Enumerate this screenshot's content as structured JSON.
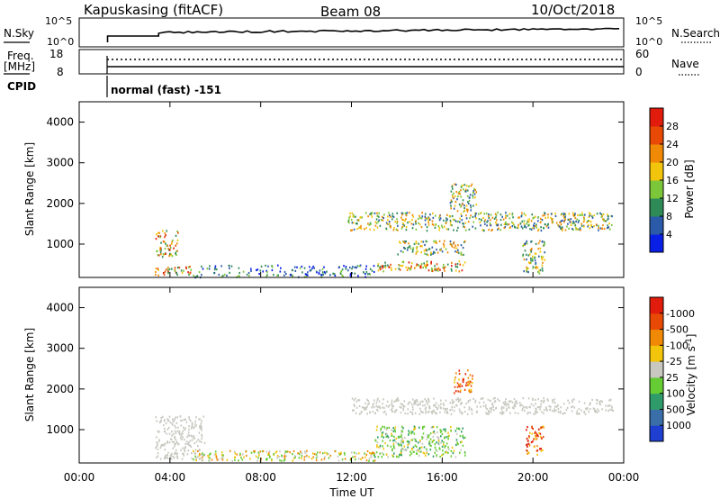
{
  "header": {
    "station": "Kapuskasing (fitACF)",
    "beam": "Beam 08",
    "date": "10/Oct/2018"
  },
  "strip_panels": {
    "noise": {
      "left_label": "N.Sky",
      "right_label": "N.Search",
      "left_ticks": [
        "10^5",
        "10^0"
      ],
      "right_ticks": [
        "10^5",
        "10^0"
      ]
    },
    "freq": {
      "left_label_line1": "Freq.",
      "left_label_line2": "[MHz]",
      "right_label": "Nave",
      "left_ticks": [
        "18",
        "8"
      ],
      "right_ticks": [
        "60",
        "0"
      ]
    },
    "cpid": {
      "label": "CPID",
      "mode_text": "normal (fast) -151"
    }
  },
  "chart_data": [
    {
      "type": "heatmap",
      "panel": "power",
      "title": "",
      "ylabel": "Slant Range [km]",
      "xlabel": "",
      "xlim": [
        "00:00",
        "24:00"
      ],
      "ylim": [
        180,
        4500
      ],
      "yticks": [
        1000,
        2000,
        3000,
        4000
      ],
      "colorbar": {
        "label": "Power [dB]",
        "ticks": [
          "4",
          "8",
          "12",
          "16",
          "20",
          "24",
          "28"
        ],
        "colors": [
          "#0a1fe6",
          "#2a5aa8",
          "#2e8b57",
          "#7cc63a",
          "#f2c40c",
          "#f08a06",
          "#e84a06",
          "#e11c0c"
        ]
      },
      "echo_regions": [
        {
          "t_start": "03:20",
          "t_end": "05:00",
          "range_km": [
            250,
            480
          ],
          "level": "high"
        },
        {
          "t_start": "03:20",
          "t_end": "04:20",
          "range_km": [
            700,
            1350
          ],
          "level": "high"
        },
        {
          "t_start": "05:00",
          "t_end": "13:00",
          "range_km": [
            200,
            500
          ],
          "level": "low"
        },
        {
          "t_start": "11:50",
          "t_end": "23:30",
          "range_km": [
            1350,
            1800
          ],
          "level": "medium"
        },
        {
          "t_start": "13:00",
          "t_end": "17:00",
          "range_km": [
            350,
            600
          ],
          "level": "high"
        },
        {
          "t_start": "14:00",
          "t_end": "17:00",
          "range_km": [
            750,
            1100
          ],
          "level": "medium"
        },
        {
          "t_start": "16:20",
          "t_end": "17:30",
          "range_km": [
            1800,
            2500
          ],
          "level": "medium"
        },
        {
          "t_start": "19:30",
          "t_end": "20:30",
          "range_km": [
            300,
            1100
          ],
          "level": "medium"
        }
      ]
    },
    {
      "type": "heatmap",
      "panel": "velocity",
      "title": "",
      "ylabel": "Slant Range [km]",
      "xlabel": "Time UT",
      "xlim": [
        "00:00",
        "24:00"
      ],
      "ylim": [
        180,
        4500
      ],
      "yticks": [
        1000,
        2000,
        3000,
        4000
      ],
      "xticks": [
        "00:00",
        "04:00",
        "08:00",
        "12:00",
        "16:00",
        "20:00",
        "00:00"
      ],
      "colorbar": {
        "label": "Velocity [m s^-1]",
        "ticks": [
          "1000",
          "500",
          "100",
          "25",
          "-25",
          "-100",
          "-500",
          "-1000"
        ],
        "colors": [
          "#1f3fd0",
          "#3a6ea8",
          "#2f9a6a",
          "#66cc33",
          "#c8c8c0",
          "#f2c40c",
          "#f08a06",
          "#e84a06",
          "#e11c0c"
        ]
      },
      "echo_regions": [
        {
          "t_start": "03:20",
          "t_end": "05:30",
          "range_km": [
            300,
            1350
          ],
          "level": "ground-scatter"
        },
        {
          "t_start": "05:00",
          "t_end": "13:00",
          "range_km": [
            250,
            500
          ],
          "level": "mixed"
        },
        {
          "t_start": "12:00",
          "t_end": "23:30",
          "range_km": [
            1400,
            1800
          ],
          "level": "ground-scatter"
        },
        {
          "t_start": "13:00",
          "t_end": "17:00",
          "range_km": [
            350,
            1100
          ],
          "level": "positive"
        },
        {
          "t_start": "16:30",
          "t_end": "17:20",
          "range_km": [
            1900,
            2500
          ],
          "level": "negative"
        },
        {
          "t_start": "19:40",
          "t_end": "20:30",
          "range_km": [
            400,
            1100
          ],
          "level": "negative"
        }
      ]
    }
  ]
}
